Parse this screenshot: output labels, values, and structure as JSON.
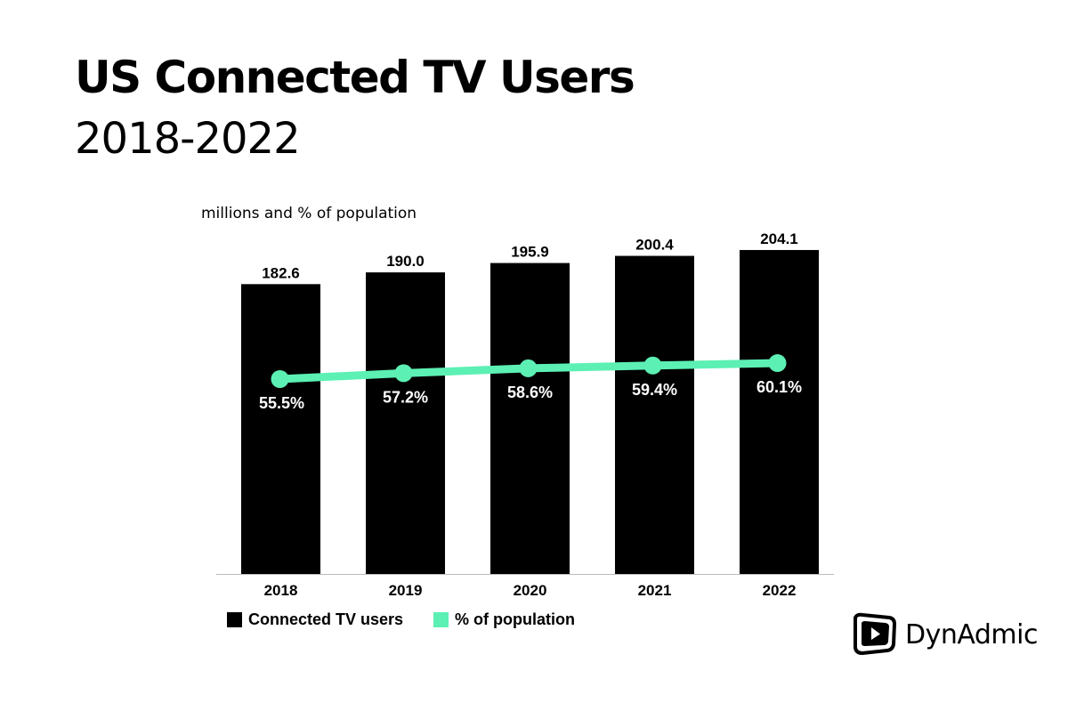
{
  "chart_data": {
    "type": "bar",
    "title": "US Connected TV Users",
    "subtitle": "2018-2022",
    "unit_label": "millions and % of population",
    "categories": [
      "2018",
      "2019",
      "2020",
      "2021",
      "2022"
    ],
    "series": [
      {
        "name": "Connected TV users",
        "type": "bar",
        "color": "#000000",
        "values": [
          182.6,
          190.0,
          195.9,
          200.4,
          204.1
        ],
        "labels": [
          "182.6",
          "190.0",
          "195.9",
          "200.4",
          "204.1"
        ]
      },
      {
        "name": "% of population",
        "type": "line",
        "color": "#5cf0b4",
        "values": [
          55.5,
          57.2,
          58.6,
          59.4,
          60.1
        ],
        "labels": [
          "55.5%",
          "57.2%",
          "58.6%",
          "59.4%",
          "60.1%"
        ]
      }
    ],
    "grid": false,
    "legend_position": "bottom-left"
  },
  "brand": {
    "name": "DynAdmic",
    "icon": "play-icon"
  }
}
